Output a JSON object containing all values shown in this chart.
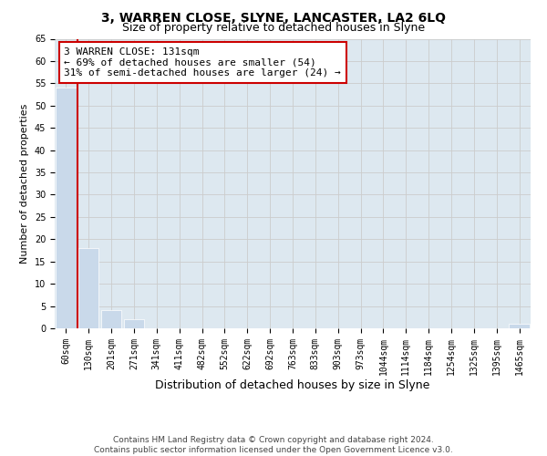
{
  "title": "3, WARREN CLOSE, SLYNE, LANCASTER, LA2 6LQ",
  "subtitle": "Size of property relative to detached houses in Slyne",
  "xlabel": "Distribution of detached houses by size in Slyne",
  "ylabel": "Number of detached properties",
  "bin_labels": [
    "60sqm",
    "130sqm",
    "201sqm",
    "271sqm",
    "341sqm",
    "411sqm",
    "482sqm",
    "552sqm",
    "622sqm",
    "692sqm",
    "763sqm",
    "833sqm",
    "903sqm",
    "973sqm",
    "1044sqm",
    "1114sqm",
    "1184sqm",
    "1254sqm",
    "1325sqm",
    "1395sqm",
    "1465sqm"
  ],
  "bar_heights": [
    54,
    18,
    4,
    2,
    0,
    0,
    0,
    0,
    0,
    0,
    0,
    0,
    0,
    0,
    0,
    0,
    0,
    0,
    0,
    0,
    1
  ],
  "bar_color": "#c9d9ea",
  "annotation_text": "3 WARREN CLOSE: 131sqm\n← 69% of detached houses are smaller (54)\n31% of semi-detached houses are larger (24) →",
  "annotation_box_facecolor": "#ffffff",
  "annotation_box_edgecolor": "#cc0000",
  "red_line_color": "#cc0000",
  "ylim": [
    0,
    65
  ],
  "yticks": [
    0,
    5,
    10,
    15,
    20,
    25,
    30,
    35,
    40,
    45,
    50,
    55,
    60,
    65
  ],
  "grid_color": "#cccccc",
  "background_color": "#ffffff",
  "plot_bg_color": "#dde8f0",
  "title_fontsize": 10,
  "subtitle_fontsize": 9,
  "xlabel_fontsize": 9,
  "ylabel_fontsize": 8,
  "tick_fontsize": 7,
  "annotation_fontsize": 8,
  "footer_fontsize": 6.5,
  "footer_line1": "Contains HM Land Registry data © Crown copyright and database right 2024.",
  "footer_line2": "Contains public sector information licensed under the Open Government Licence v3.0."
}
